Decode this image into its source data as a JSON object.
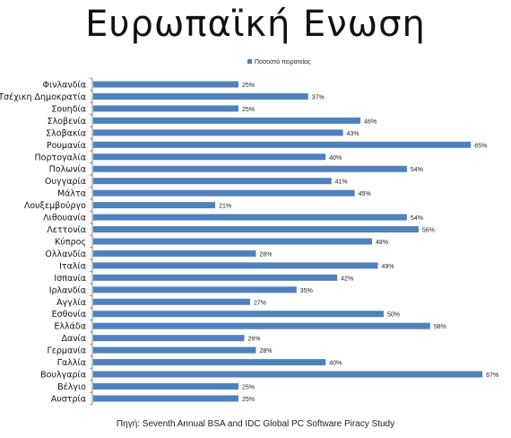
{
  "title": "Ευρωπαϊκή  Ενωση",
  "source": "Πηγή: Seventh Annual BSA and IDC Global PC Software Piracy Study",
  "chart_data": {
    "type": "bar",
    "orientation": "horizontal",
    "legend_position": "top-center",
    "grid": false,
    "xlim": [
      0,
      70
    ],
    "series": [
      {
        "name": "Ποσοστό πειρατείας",
        "color": "#4f81bd",
        "values": [
          25,
          37,
          25,
          46,
          43,
          65,
          40,
          54,
          41,
          45,
          21,
          54,
          56,
          48,
          28,
          49,
          42,
          35,
          27,
          50,
          58,
          26,
          28,
          40,
          67,
          25,
          25
        ]
      }
    ],
    "categories": [
      "Φινλανδία",
      "Τσέχικη Δημοκρατία",
      "Σουηδία",
      "Σλοβενία",
      "Σλοβακία",
      "Ρουμανία",
      "Πορτογαλία",
      "Πολωνία",
      "Ουγγαρία",
      "Μάλτα",
      "Λουξεμβούργο",
      "Λιθουανία",
      "Λεττονία",
      "Κύπρος",
      "Ολλανδία",
      "Ιταλία",
      "Ισπανία",
      "Ιρλανδία",
      "Αγγλία",
      "Εσθονία",
      "Ελλάδα",
      "Δανία",
      "Γερμανία",
      "Γαλλία",
      "Βουλγαρία",
      "Βέλγιο",
      "Αυστρία"
    ],
    "data_labels": [
      "25%",
      "37%",
      "25%",
      "46%",
      "43%",
      "65%",
      "40%",
      "54%",
      "41%",
      "45%",
      "21%",
      "54%",
      "56%",
      "48%",
      "28%",
      "49%",
      "42%",
      "35%",
      "27%",
      "50%",
      "58%",
      "26%",
      "28%",
      "40%",
      "67%",
      "25%",
      "25%"
    ]
  }
}
